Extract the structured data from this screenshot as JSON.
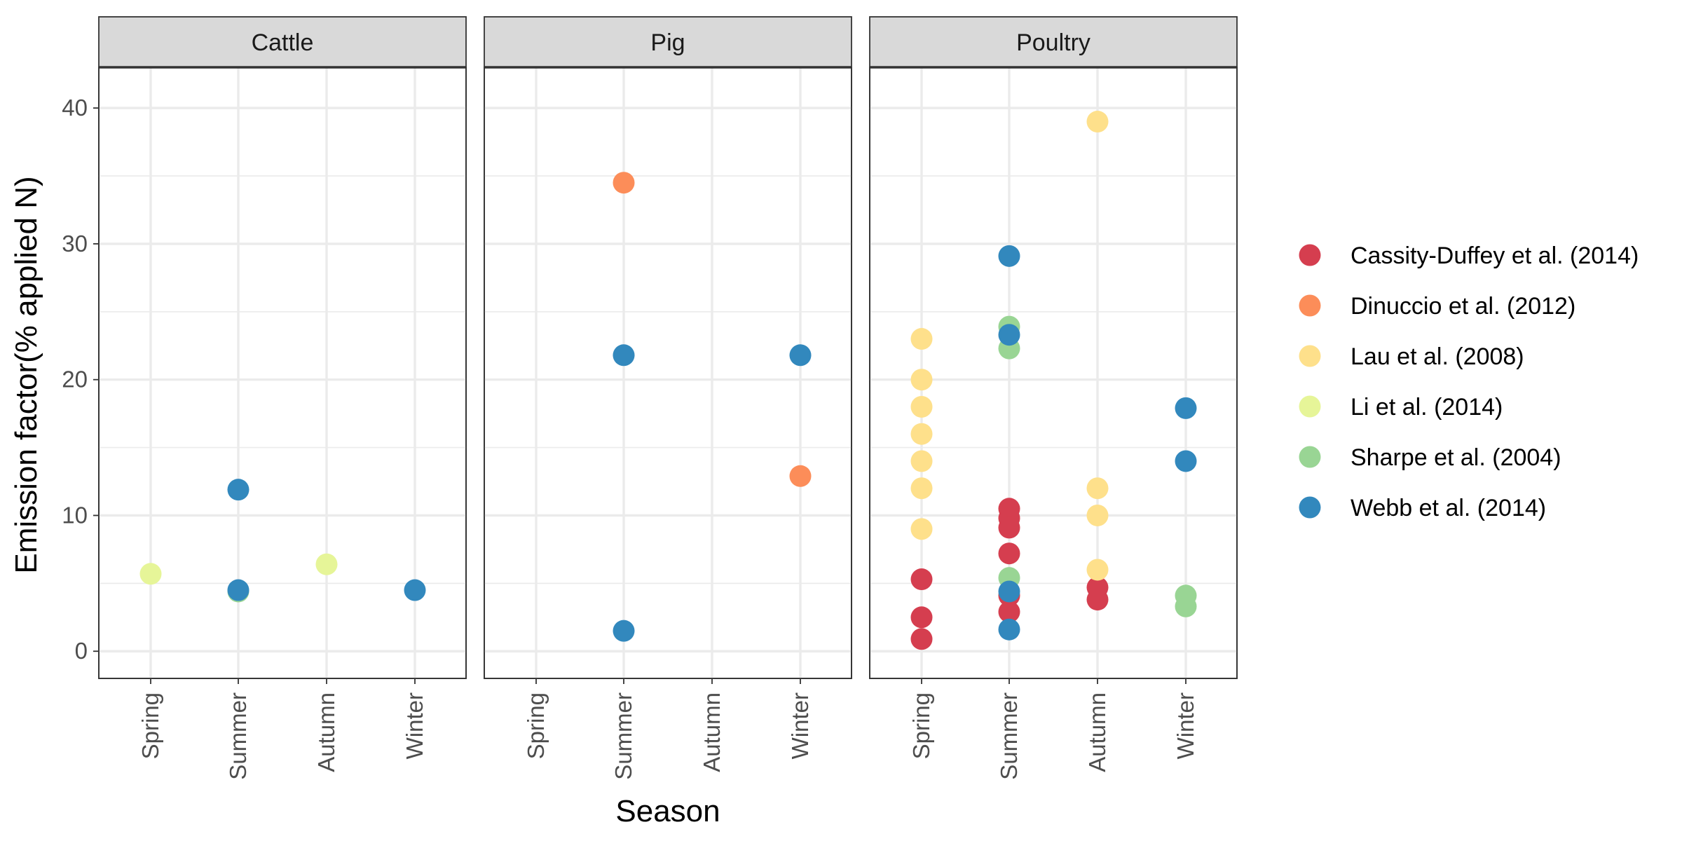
{
  "chart_data": {
    "type": "scatter",
    "xlabel": "Season",
    "ylabel": "Emission factor(% applied N)",
    "categories": [
      "Spring",
      "Summer",
      "Autumn",
      "Winter"
    ],
    "ylim": [
      -2,
      43
    ],
    "yticks": [
      0,
      10,
      20,
      30,
      40
    ],
    "grid": true,
    "legend_position": "right",
    "facets": [
      "Cattle",
      "Pig",
      "Poultry"
    ],
    "series": [
      {
        "name": "Cassity-Duffey et al. (2014)",
        "color": "#d53e4f",
        "points": [
          {
            "facet": "Poultry",
            "x": "Spring",
            "y": 5.3
          },
          {
            "facet": "Poultry",
            "x": "Spring",
            "y": 2.5
          },
          {
            "facet": "Poultry",
            "x": "Spring",
            "y": 0.9
          },
          {
            "facet": "Poultry",
            "x": "Summer",
            "y": 10.5
          },
          {
            "facet": "Poultry",
            "x": "Summer",
            "y": 9.8
          },
          {
            "facet": "Poultry",
            "x": "Summer",
            "y": 9.1
          },
          {
            "facet": "Poultry",
            "x": "Summer",
            "y": 7.2
          },
          {
            "facet": "Poultry",
            "x": "Summer",
            "y": 4.1
          },
          {
            "facet": "Poultry",
            "x": "Summer",
            "y": 2.9
          },
          {
            "facet": "Poultry",
            "x": "Autumn",
            "y": 4.7
          },
          {
            "facet": "Poultry",
            "x": "Autumn",
            "y": 3.8
          }
        ]
      },
      {
        "name": "Dinuccio et al. (2012)",
        "color": "#fc8d59",
        "points": [
          {
            "facet": "Pig",
            "x": "Summer",
            "y": 34.5
          },
          {
            "facet": "Pig",
            "x": "Winter",
            "y": 12.9
          }
        ]
      },
      {
        "name": "Lau et al. (2008)",
        "color": "#fee08b",
        "points": [
          {
            "facet": "Poultry",
            "x": "Spring",
            "y": 23.0
          },
          {
            "facet": "Poultry",
            "x": "Spring",
            "y": 20.0
          },
          {
            "facet": "Poultry",
            "x": "Spring",
            "y": 18.0
          },
          {
            "facet": "Poultry",
            "x": "Spring",
            "y": 16.0
          },
          {
            "facet": "Poultry",
            "x": "Spring",
            "y": 14.0
          },
          {
            "facet": "Poultry",
            "x": "Spring",
            "y": 12.0
          },
          {
            "facet": "Poultry",
            "x": "Spring",
            "y": 9.0
          },
          {
            "facet": "Poultry",
            "x": "Autumn",
            "y": 39.0
          },
          {
            "facet": "Poultry",
            "x": "Autumn",
            "y": 12.0
          },
          {
            "facet": "Poultry",
            "x": "Autumn",
            "y": 10.0
          },
          {
            "facet": "Poultry",
            "x": "Autumn",
            "y": 6.0
          }
        ]
      },
      {
        "name": "Li et al. (2014)",
        "color": "#e6f598",
        "points": [
          {
            "facet": "Cattle",
            "x": "Spring",
            "y": 5.7
          },
          {
            "facet": "Cattle",
            "x": "Autumn",
            "y": 6.4
          }
        ]
      },
      {
        "name": "Sharpe et al. (2004)",
        "color": "#99d594",
        "points": [
          {
            "facet": "Cattle",
            "x": "Summer",
            "y": 4.4
          },
          {
            "facet": "Poultry",
            "x": "Summer",
            "y": 23.9
          },
          {
            "facet": "Poultry",
            "x": "Summer",
            "y": 22.3
          },
          {
            "facet": "Poultry",
            "x": "Summer",
            "y": 5.4
          },
          {
            "facet": "Poultry",
            "x": "Winter",
            "y": 4.1
          },
          {
            "facet": "Poultry",
            "x": "Winter",
            "y": 3.3
          }
        ]
      },
      {
        "name": "Webb et al. (2014)",
        "color": "#3288bd",
        "points": [
          {
            "facet": "Cattle",
            "x": "Summer",
            "y": 11.9
          },
          {
            "facet": "Cattle",
            "x": "Summer",
            "y": 4.5
          },
          {
            "facet": "Cattle",
            "x": "Winter",
            "y": 4.5
          },
          {
            "facet": "Pig",
            "x": "Summer",
            "y": 21.8
          },
          {
            "facet": "Pig",
            "x": "Summer",
            "y": 1.5
          },
          {
            "facet": "Pig",
            "x": "Winter",
            "y": 21.8
          },
          {
            "facet": "Poultry",
            "x": "Summer",
            "y": 29.1
          },
          {
            "facet": "Poultry",
            "x": "Summer",
            "y": 23.3
          },
          {
            "facet": "Poultry",
            "x": "Summer",
            "y": 4.4
          },
          {
            "facet": "Poultry",
            "x": "Summer",
            "y": 1.6
          },
          {
            "facet": "Poultry",
            "x": "Winter",
            "y": 17.9
          },
          {
            "facet": "Poultry",
            "x": "Winter",
            "y": 14.0
          }
        ]
      }
    ]
  }
}
